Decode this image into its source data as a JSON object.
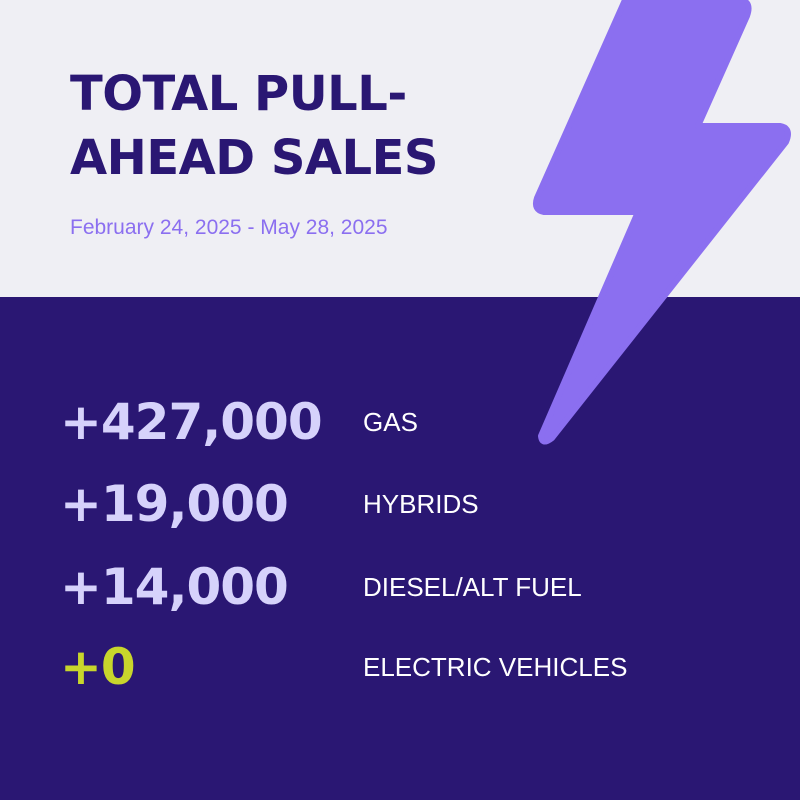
{
  "header": {
    "title_line1": "TOTAL PULL-",
    "title_line2": "AHEAD SALES",
    "date_range": "February 24, 2025 - May 28, 2025"
  },
  "stats": [
    {
      "value": "+427,000",
      "label": "GAS"
    },
    {
      "value": "+19,000",
      "label": "HYBRIDS"
    },
    {
      "value": "+14,000",
      "label": "DIESEL/ALT FUEL"
    },
    {
      "value": "+0",
      "label": "ELECTRIC VEHICLES"
    }
  ],
  "colors": {
    "light_background": "#efeff4",
    "dark_background": "#2a1773",
    "title": "#2a1773",
    "date": "#8b6ff0",
    "bolt": "#8b6ff0",
    "stat_value": "#d6d2fb",
    "stat_value_highlight": "#c8d62c",
    "stat_label": "#ffffff"
  },
  "icons": {
    "bolt": "lightning-bolt-icon"
  }
}
